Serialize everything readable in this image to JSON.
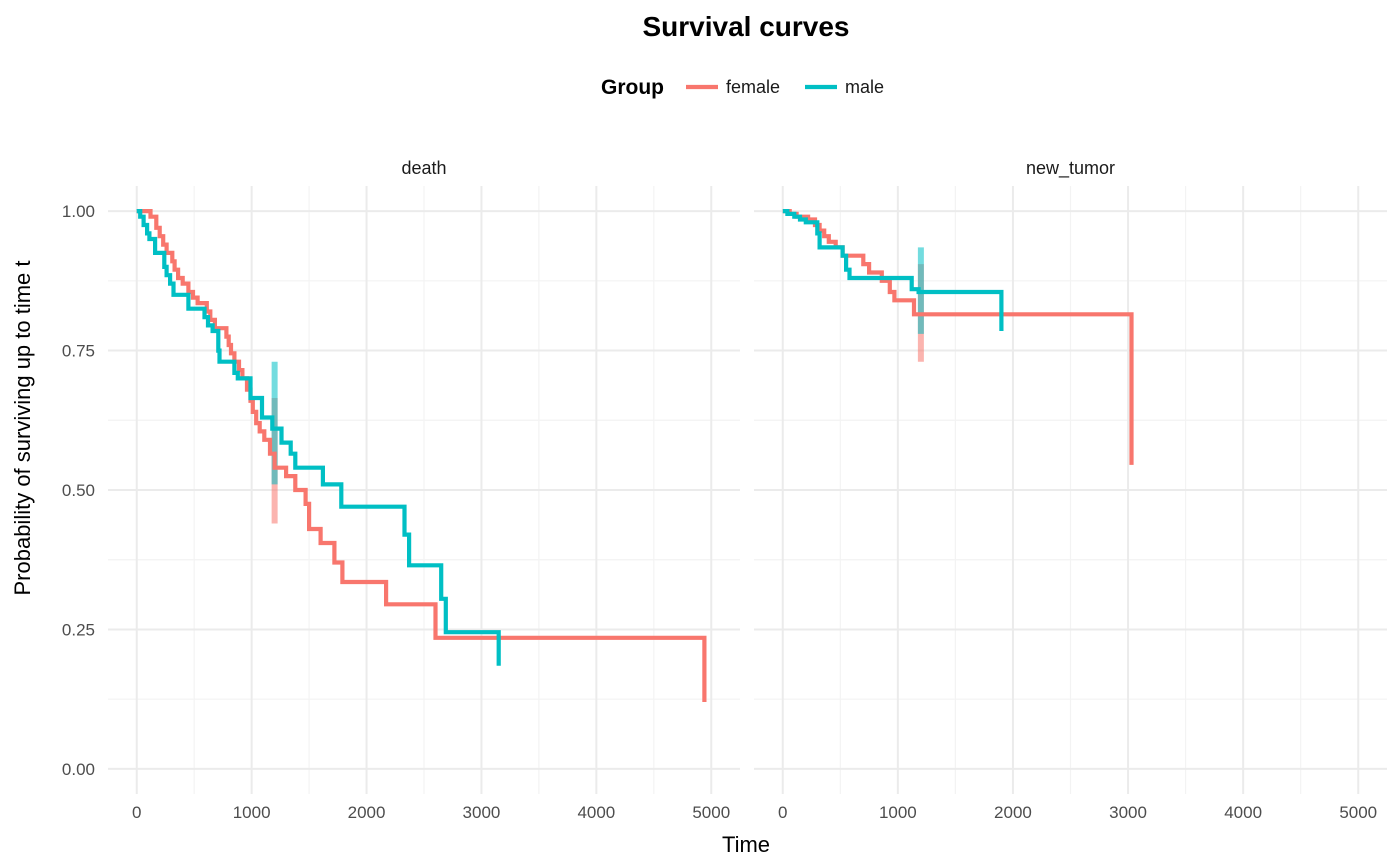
{
  "chart_data": {
    "type": "line",
    "title": "Survival curves",
    "xlabel": "Time",
    "ylabel": "Probability of surviving up to time t",
    "xlim": [
      -250,
      5250
    ],
    "ylim": [
      -0.045,
      1.045
    ],
    "x_ticks": [
      0,
      1000,
      2000,
      3000,
      4000,
      5000
    ],
    "y_ticks": [
      0.0,
      0.25,
      0.5,
      0.75,
      1.0
    ],
    "y_tick_labels": [
      "0.00",
      "0.25",
      "0.50",
      "0.75",
      "1.00"
    ],
    "grid": true,
    "legend": {
      "title": "Group",
      "placement": "top",
      "entries": [
        {
          "name": "female",
          "color": "#f8766d"
        },
        {
          "name": "male",
          "color": "#00bfc4"
        }
      ]
    },
    "panels": [
      {
        "label": "death",
        "series": [
          {
            "name": "female",
            "color": "#f8766d",
            "steps": [
              [
                0,
                1.0
              ],
              [
                120,
                0.99
              ],
              [
                170,
                0.97
              ],
              [
                200,
                0.955
              ],
              [
                230,
                0.94
              ],
              [
                260,
                0.925
              ],
              [
                310,
                0.91
              ],
              [
                330,
                0.895
              ],
              [
                360,
                0.88
              ],
              [
                400,
                0.87
              ],
              [
                450,
                0.855
              ],
              [
                490,
                0.845
              ],
              [
                530,
                0.835
              ],
              [
                610,
                0.82
              ],
              [
                640,
                0.805
              ],
              [
                680,
                0.79
              ],
              [
                780,
                0.775
              ],
              [
                800,
                0.76
              ],
              [
                820,
                0.745
              ],
              [
                850,
                0.73
              ],
              [
                890,
                0.715
              ],
              [
                920,
                0.7
              ],
              [
                960,
                0.68
              ],
              [
                990,
                0.66
              ],
              [
                1010,
                0.64
              ],
              [
                1040,
                0.62
              ],
              [
                1070,
                0.605
              ],
              [
                1110,
                0.59
              ],
              [
                1160,
                0.565
              ],
              [
                1200,
                0.54
              ],
              [
                1300,
                0.525
              ],
              [
                1380,
                0.5
              ],
              [
                1470,
                0.475
              ],
              [
                1500,
                0.43
              ],
              [
                1600,
                0.405
              ],
              [
                1720,
                0.37
              ],
              [
                1790,
                0.335
              ],
              [
                2170,
                0.295
              ],
              [
                2600,
                0.235
              ],
              [
                4940,
                0.235
              ],
              [
                4940,
                0.12
              ]
            ],
            "ci_band": {
              "x": 1200,
              "low": 0.44,
              "high": 0.665
            }
          },
          {
            "name": "male",
            "color": "#00bfc4",
            "steps": [
              [
                0,
                1.0
              ],
              [
                30,
                0.99
              ],
              [
                60,
                0.975
              ],
              [
                90,
                0.96
              ],
              [
                110,
                0.95
              ],
              [
                160,
                0.925
              ],
              [
                240,
                0.9
              ],
              [
                260,
                0.885
              ],
              [
                290,
                0.87
              ],
              [
                320,
                0.85
              ],
              [
                450,
                0.825
              ],
              [
                590,
                0.81
              ],
              [
                620,
                0.795
              ],
              [
                660,
                0.785
              ],
              [
                710,
                0.75
              ],
              [
                720,
                0.73
              ],
              [
                850,
                0.71
              ],
              [
                880,
                0.7
              ],
              [
                990,
                0.665
              ],
              [
                1090,
                0.63
              ],
              [
                1180,
                0.61
              ],
              [
                1260,
                0.585
              ],
              [
                1340,
                0.565
              ],
              [
                1380,
                0.54
              ],
              [
                1620,
                0.51
              ],
              [
                1780,
                0.47
              ],
              [
                2330,
                0.42
              ],
              [
                2370,
                0.365
              ],
              [
                2650,
                0.305
              ],
              [
                2690,
                0.245
              ],
              [
                3150,
                0.245
              ],
              [
                3150,
                0.185
              ]
            ],
            "ci_band": {
              "x": 1200,
              "low": 0.51,
              "high": 0.73
            }
          }
        ]
      },
      {
        "label": "new_tumor",
        "series": [
          {
            "name": "female",
            "color": "#f8766d",
            "steps": [
              [
                0,
                1.0
              ],
              [
                60,
                0.995
              ],
              [
                120,
                0.99
              ],
              [
                220,
                0.985
              ],
              [
                280,
                0.975
              ],
              [
                320,
                0.965
              ],
              [
                360,
                0.955
              ],
              [
                400,
                0.945
              ],
              [
                460,
                0.935
              ],
              [
                520,
                0.92
              ],
              [
                700,
                0.905
              ],
              [
                750,
                0.89
              ],
              [
                860,
                0.875
              ],
              [
                930,
                0.855
              ],
              [
                970,
                0.84
              ],
              [
                1140,
                0.815
              ],
              [
                3030,
                0.815
              ],
              [
                3030,
                0.545
              ]
            ],
            "ci_band": {
              "x": 1200,
              "low": 0.73,
              "high": 0.905
            }
          },
          {
            "name": "male",
            "color": "#00bfc4",
            "steps": [
              [
                0,
                1.0
              ],
              [
                40,
                0.995
              ],
              [
                100,
                0.99
              ],
              [
                150,
                0.985
              ],
              [
                200,
                0.98
              ],
              [
                300,
                0.96
              ],
              [
                320,
                0.935
              ],
              [
                520,
                0.92
              ],
              [
                550,
                0.895
              ],
              [
                580,
                0.88
              ],
              [
                1120,
                0.86
              ],
              [
                1180,
                0.855
              ],
              [
                1900,
                0.855
              ],
              [
                1900,
                0.785
              ]
            ],
            "ci_band": {
              "x": 1200,
              "low": 0.78,
              "high": 0.935
            }
          }
        ]
      }
    ]
  }
}
